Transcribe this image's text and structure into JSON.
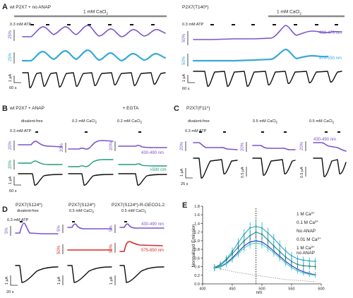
{
  "panel_letters": [
    "A",
    "B",
    "C",
    "D",
    "E"
  ],
  "panelA": {
    "left_title": "wt P2X7 + no ANAP",
    "right_title": "P2X7(T140*)",
    "cacl2": "1 mM CaCl",
    "cacl2_sub": "2",
    "atp": "0.3 mM ATP",
    "scale_pct": "25%",
    "scale_pct_right": "50%",
    "scale_current": "1 µA",
    "scale_time": "60 s",
    "wl_purple": "430-470 nm",
    "wl_cyan": "470-550 nm"
  },
  "panelB": {
    "title": "wt P2X7 + ANAP",
    "cond1": "divalent-free",
    "cond2": "0.2 mM CaCl",
    "cond2_sub": "2",
    "cond3_a": "+ EGTA",
    "cond3_b": "0.2 mM CaCl",
    "cond3_sub": "2",
    "atp": "0.3 mM ATP",
    "scale_pct": "20%",
    "scale_current": "1 µA",
    "scale_time": "60 s",
    "wl_purple": "430-490 nm",
    "wl_green": ">500 nm"
  },
  "panelC": {
    "title": "P2X7(F11*)",
    "cond1": "divalent-free",
    "cond2": "0.5 mM CaCl",
    "cond2_sub": "2",
    "cond3": "0.5 mM CaCl",
    "cond3_sub": "2",
    "atp": "0.3 mM ATP",
    "scale_pct": "20%",
    "scale_current_1": "1 µA",
    "scale_current_2": "0.5 µA",
    "scale_time": "25 s",
    "wl_purple": "430-490 nm"
  },
  "panelD": {
    "title1": "P2X7(S124*)",
    "title2": "P2X7(S124*)",
    "title3": "P2X7(S124*)-R-GECO1.2",
    "cond1": "divalent-free",
    "cond2": "0.5 mM CaCl",
    "cond2_sub": "2",
    "cond3": "0.5 mM CaCl",
    "cond3_sub": "2",
    "atp": "0.3 mM ATP",
    "scale_pct": "5%",
    "scale_pct_red": "50%",
    "scale_current": "1 µA",
    "scale_time": "20 s",
    "wl_purple": "430-490 nm",
    "wl_red": "575-650 nm"
  },
  "chart_data": {
    "type": "line",
    "title": "",
    "xlabel": "nm",
    "ylabel": "Normalized Emission",
    "xlim": [
      400,
      600
    ],
    "ylim": [
      0,
      1.8
    ],
    "xticks": [
      400,
      450,
      500,
      550,
      600
    ],
    "yticks": [
      0,
      0.2,
      0.4,
      0.6,
      0.8,
      1.0,
      1.2,
      1.4,
      1.6,
      1.8
    ],
    "dotted_line_x": 490,
    "legend_position": "top-right",
    "x": [
      420,
      430,
      440,
      450,
      460,
      470,
      480,
      490,
      500,
      510,
      520,
      530,
      540,
      550,
      560,
      570,
      580,
      590
    ],
    "series": [
      {
        "name": "1 M Ca",
        "legend_sup": "2+",
        "color": "#2aa9c2",
        "values": [
          0.38,
          0.45,
          0.58,
          0.75,
          0.95,
          1.15,
          1.3,
          1.33,
          1.3,
          1.18,
          1.05,
          0.9,
          0.76,
          0.65,
          0.58,
          0.55,
          0.53,
          0.52
        ]
      },
      {
        "name": "0.1 M Ca",
        "legend_sup": "2+",
        "color": "#1f8c8c",
        "values": [
          0.38,
          0.43,
          0.55,
          0.7,
          0.85,
          1.0,
          1.12,
          1.2,
          1.15,
          1.02,
          0.88,
          0.75,
          0.62,
          0.52,
          0.45,
          0.42,
          0.41,
          0.4
        ]
      },
      {
        "name": "No ANAP",
        "legend_sup": "",
        "color": "#2a2fb4",
        "values": [
          0.37,
          0.4,
          0.48,
          0.6,
          0.74,
          0.88,
          0.97,
          1.0,
          0.97,
          0.88,
          0.76,
          0.64,
          0.52,
          0.42,
          0.34,
          0.28,
          0.24,
          0.21
        ]
      },
      {
        "name": "0.01 M Ca",
        "legend_sup": "2+",
        "color": "#4fd0c0",
        "values": [
          0.36,
          0.39,
          0.46,
          0.57,
          0.7,
          0.83,
          0.92,
          0.95,
          0.92,
          0.83,
          0.72,
          0.6,
          0.48,
          0.38,
          0.3,
          0.25,
          0.22,
          0.2
        ]
      },
      {
        "name": "1 M Ca",
        "legend_sup": "2+",
        "legend_line2": "no ANAP",
        "color": "#9a9a9a",
        "values": [
          0.38,
          0.35,
          0.32,
          0.29,
          0.26,
          0.24,
          0.22,
          0.2,
          0.18,
          0.16,
          0.14,
          0.12,
          0.1,
          0.09,
          0.08,
          0.07,
          0.06,
          0.05
        ]
      }
    ]
  }
}
